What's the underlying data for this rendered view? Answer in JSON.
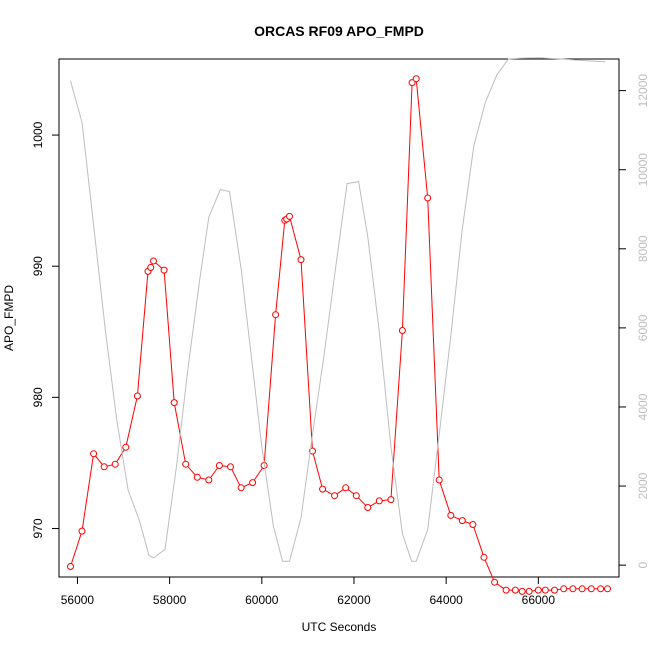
{
  "chart_data": {
    "type": "line",
    "title": "ORCAS RF09 APO_FMPD",
    "xlabel": "UTC Seconds",
    "ylabel": "APO_FMPD",
    "xlim": [
      55600,
      67750
    ],
    "ylim": [
      966.3,
      1005.8
    ],
    "y2lim": [
      -300,
      12800
    ],
    "x_ticks": [
      56000,
      58000,
      60000,
      62000,
      64000,
      66000
    ],
    "y_ticks": [
      970,
      980,
      990,
      1000
    ],
    "y2_ticks": [
      0,
      2000,
      4000,
      6000,
      8000,
      10000,
      12000
    ],
    "grid": false,
    "colors": {
      "primary": "#ff0000",
      "secondary": "#bebebe"
    },
    "series": [
      {
        "axis": "left",
        "style": "line-with-open-circles",
        "color": "#ff0000",
        "x": [
          55850,
          56100,
          56350,
          56580,
          56820,
          57050,
          57300,
          57530,
          57590,
          57650,
          57880,
          58100,
          58350,
          58600,
          58850,
          59080,
          59320,
          59550,
          59800,
          60050,
          60300,
          60500,
          60540,
          60600,
          60850,
          61100,
          61320,
          61580,
          61820,
          62050,
          62300,
          62550,
          62800,
          63050,
          63260,
          63350,
          63600,
          63850,
          64100,
          64350,
          64580,
          64820,
          65050,
          65300,
          65500,
          65650,
          65800,
          66000,
          66150,
          66350,
          66550,
          66750,
          66950,
          67150,
          67350,
          67500
        ],
        "y": [
          967.1,
          969.8,
          975.7,
          974.7,
          974.9,
          976.2,
          980.1,
          989.6,
          989.9,
          990.4,
          989.7,
          979.6,
          974.9,
          973.9,
          973.7,
          974.8,
          974.7,
          973.1,
          973.5,
          974.8,
          986.3,
          993.5,
          993.6,
          993.8,
          990.5,
          975.9,
          973.0,
          972.5,
          973.1,
          972.5,
          971.6,
          972.1,
          972.2,
          985.1,
          1004.0,
          1004.3,
          995.2,
          973.7,
          971.0,
          970.6,
          970.3,
          967.8,
          965.9,
          965.3,
          965.3,
          965.2,
          965.2,
          965.3,
          965.3,
          965.3,
          965.4,
          965.4,
          965.4,
          965.4,
          965.4,
          965.4
        ]
      },
      {
        "axis": "right",
        "style": "line",
        "color": "#bebebe",
        "x": [
          55850,
          56100,
          56350,
          56600,
          56850,
          57100,
          57350,
          57550,
          57650,
          57900,
          58150,
          58400,
          58650,
          58850,
          59100,
          59300,
          59550,
          59750,
          60000,
          60250,
          60450,
          60600,
          60850,
          61100,
          61350,
          61600,
          61850,
          62100,
          62300,
          62550,
          62800,
          63050,
          63250,
          63350,
          63600,
          63850,
          64100,
          64350,
          64600,
          64850,
          65100,
          65350,
          65600,
          66000,
          66500,
          67000,
          67450
        ],
        "y": [
          12250,
          11200,
          8600,
          6000,
          3700,
          1900,
          1100,
          250,
          180,
          400,
          2500,
          5000,
          7200,
          8800,
          9500,
          9450,
          7500,
          5500,
          3000,
          1000,
          100,
          100,
          1200,
          3300,
          5300,
          7500,
          9650,
          9700,
          8300,
          5900,
          3000,
          800,
          100,
          100,
          900,
          3300,
          5800,
          8500,
          10600,
          11700,
          12400,
          12800,
          12820,
          12830,
          12800,
          12760,
          12730
        ]
      }
    ]
  }
}
